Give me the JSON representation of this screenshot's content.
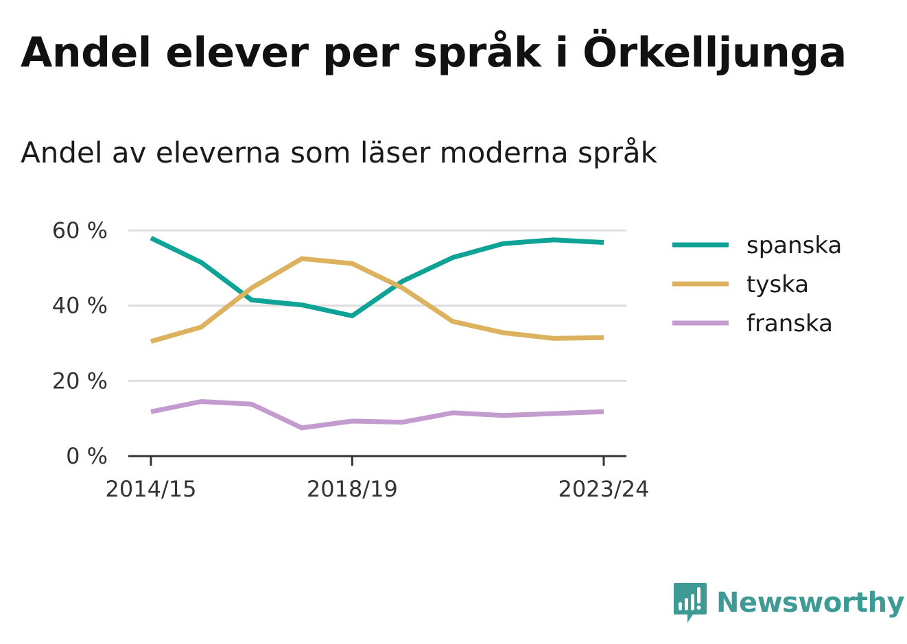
{
  "header": {
    "title": "Andel elever per språk i Örkelljunga",
    "subtitle": "Andel av eleverna som läser moderna språk"
  },
  "brand": {
    "name": "Newsworthy",
    "color": "#3d9a94"
  },
  "chart_data": {
    "type": "line",
    "x": [
      "2014/15",
      "2015/16",
      "2016/17",
      "2017/18",
      "2018/19",
      "2019/20",
      "2020/21",
      "2021/22",
      "2022/23",
      "2023/24"
    ],
    "x_tick_labels": [
      "2014/15",
      "2018/19",
      "2023/24"
    ],
    "y_ticks": [
      0,
      20,
      40,
      60
    ],
    "y_tick_labels": [
      "0 %",
      "20 %",
      "40 %",
      "60 %"
    ],
    "ylim": [
      0,
      60
    ],
    "grid": true,
    "legend_position": "right",
    "series": [
      {
        "name": "spanska",
        "color": "#0fa398",
        "values": [
          58,
          51.5,
          41.5,
          40.2,
          37.3,
          46.5,
          52.8,
          56.5,
          57.5,
          56.8
        ]
      },
      {
        "name": "tyska",
        "color": "#ddb25f",
        "values": [
          30.5,
          34.3,
          44.7,
          52.5,
          51.2,
          44.7,
          35.8,
          32.8,
          31.3,
          31.5
        ]
      },
      {
        "name": "franska",
        "color": "#c49bcf",
        "values": [
          11.8,
          14.5,
          13.8,
          7.5,
          9.3,
          9,
          11.5,
          10.8,
          11.3,
          11.8
        ]
      }
    ]
  }
}
